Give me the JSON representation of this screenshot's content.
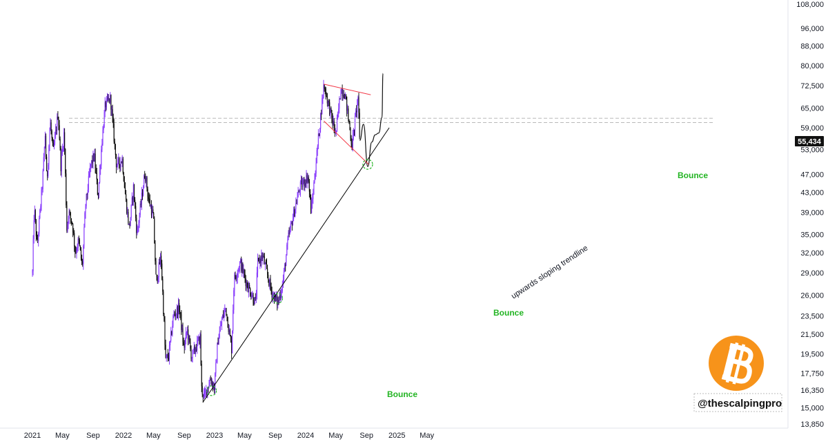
{
  "chart_data": {
    "type": "candlestick",
    "y_scale": "log",
    "ylim": [
      13850,
      108000
    ],
    "y_ticks": [
      "108,000",
      "96,000",
      "88,000",
      "80,000",
      "72,500",
      "65,000",
      "59,000",
      "53,000",
      "47,000",
      "43,000",
      "39,000",
      "35,000",
      "32,000",
      "29,000",
      "26,000",
      "23,500",
      "21,500",
      "19,500",
      "17,750",
      "16,350",
      "15,000",
      "13,850"
    ],
    "x_ticks": [
      "2021",
      "May",
      "Sep",
      "2022",
      "May",
      "Sep",
      "2023",
      "May",
      "Sep",
      "2024",
      "May",
      "Sep",
      "2025",
      "May"
    ],
    "last_price": "55,434",
    "colors": {
      "up": "#8a3ffc",
      "down": "#111111",
      "trendline": "#000000",
      "wedge": "#f23645",
      "resistance": "#b8b8b8",
      "bounce": "#22b422",
      "last_bg": "#111111",
      "logo": "#f7931a"
    },
    "price_path": [
      {
        "date": "2021-01-01",
        "close": 29000
      },
      {
        "date": "2021-01-08",
        "close": 40000
      },
      {
        "date": "2021-01-20",
        "close": 33000
      },
      {
        "date": "2021-02-10",
        "close": 45000
      },
      {
        "date": "2021-02-21",
        "close": 57000
      },
      {
        "date": "2021-02-28",
        "close": 45000
      },
      {
        "date": "2021-03-13",
        "close": 61000
      },
      {
        "date": "2021-03-25",
        "close": 52000
      },
      {
        "date": "2021-04-14",
        "close": 63500
      },
      {
        "date": "2021-04-25",
        "close": 49000
      },
      {
        "date": "2021-05-08",
        "close": 58000
      },
      {
        "date": "2021-05-19",
        "close": 36000
      },
      {
        "date": "2021-05-26",
        "close": 39000
      },
      {
        "date": "2021-06-10",
        "close": 37000
      },
      {
        "date": "2021-06-22",
        "close": 32000
      },
      {
        "date": "2021-07-05",
        "close": 34000
      },
      {
        "date": "2021-07-20",
        "close": 29800
      },
      {
        "date": "2021-08-01",
        "close": 40000
      },
      {
        "date": "2021-08-22",
        "close": 49000
      },
      {
        "date": "2021-09-06",
        "close": 51500
      },
      {
        "date": "2021-09-21",
        "close": 42000
      },
      {
        "date": "2021-10-06",
        "close": 55000
      },
      {
        "date": "2021-10-20",
        "close": 66000
      },
      {
        "date": "2021-11-10",
        "close": 68000
      },
      {
        "date": "2021-11-27",
        "close": 54000
      },
      {
        "date": "2021-12-04",
        "close": 49000
      },
      {
        "date": "2021-12-27",
        "close": 50500
      },
      {
        "date": "2022-01-10",
        "close": 41500
      },
      {
        "date": "2022-01-24",
        "close": 36000
      },
      {
        "date": "2022-02-10",
        "close": 44000
      },
      {
        "date": "2022-02-24",
        "close": 35000
      },
      {
        "date": "2022-03-28",
        "close": 47500
      },
      {
        "date": "2022-04-10",
        "close": 42000
      },
      {
        "date": "2022-05-01",
        "close": 38000
      },
      {
        "date": "2022-05-12",
        "close": 27500
      },
      {
        "date": "2022-05-31",
        "close": 31500
      },
      {
        "date": "2022-06-13",
        "close": 22500
      },
      {
        "date": "2022-06-18",
        "close": 19000
      },
      {
        "date": "2022-07-01",
        "close": 19300
      },
      {
        "date": "2022-07-20",
        "close": 23500
      },
      {
        "date": "2022-08-13",
        "close": 24500
      },
      {
        "date": "2022-08-31",
        "close": 20000
      },
      {
        "date": "2022-09-13",
        "close": 22000
      },
      {
        "date": "2022-10-01",
        "close": 19200
      },
      {
        "date": "2022-11-05",
        "close": 21200
      },
      {
        "date": "2022-11-09",
        "close": 16500
      },
      {
        "date": "2022-11-21",
        "close": 15800
      },
      {
        "date": "2022-12-15",
        "close": 17300
      },
      {
        "date": "2022-12-31",
        "close": 16550
      },
      {
        "date": "2023-01-14",
        "close": 20800
      },
      {
        "date": "2023-01-31",
        "close": 23100
      },
      {
        "date": "2023-02-15",
        "close": 24500
      },
      {
        "date": "2023-03-10",
        "close": 20000
      },
      {
        "date": "2023-03-20",
        "close": 28000
      },
      {
        "date": "2023-04-14",
        "close": 30500
      },
      {
        "date": "2023-05-10",
        "close": 27500
      },
      {
        "date": "2023-06-15",
        "close": 25000
      },
      {
        "date": "2023-06-23",
        "close": 30500
      },
      {
        "date": "2023-07-13",
        "close": 31500
      },
      {
        "date": "2023-08-17",
        "close": 26500
      },
      {
        "date": "2023-09-11",
        "close": 25000
      },
      {
        "date": "2023-10-01",
        "close": 27500
      },
      {
        "date": "2023-10-24",
        "close": 34500
      },
      {
        "date": "2023-12-08",
        "close": 44000
      },
      {
        "date": "2024-01-11",
        "close": 46500
      },
      {
        "date": "2024-01-23",
        "close": 39000
      },
      {
        "date": "2024-02-15",
        "close": 52000
      },
      {
        "date": "2024-03-14",
        "close": 73000
      },
      {
        "date": "2024-04-17",
        "close": 61000
      },
      {
        "date": "2024-05-01",
        "close": 57000
      },
      {
        "date": "2024-05-21",
        "close": 71500
      },
      {
        "date": "2024-06-07",
        "close": 69500
      },
      {
        "date": "2024-07-05",
        "close": 54000
      },
      {
        "date": "2024-07-29",
        "close": 69000
      },
      {
        "date": "2024-08-05",
        "close": 53500
      }
    ],
    "annotations": {
      "trendline_label": "upwards sloping trendline",
      "bounce_label": "Bounce",
      "bounce_dates": [
        "2022-12-20",
        "2023-09-11",
        "2024-09-06"
      ],
      "watermark": "@thescalpingpro"
    },
    "projection": [
      {
        "date": "2024-08-05",
        "close": 55400
      },
      {
        "date": "2024-08-20",
        "close": 60000
      },
      {
        "date": "2024-09-06",
        "close": 48800
      },
      {
        "date": "2024-09-22",
        "close": 55000
      },
      {
        "date": "2024-10-06",
        "close": 57000
      },
      {
        "date": "2024-10-20",
        "close": 57500
      },
      {
        "date": "2024-11-02",
        "close": 62000
      },
      {
        "date": "2024-11-06",
        "close": 77000
      }
    ],
    "overlays": [
      {
        "name": "uptrend",
        "points": [
          {
            "date": "2022-11-15",
            "value": 15400
          },
          {
            "date": "2024-12-01",
            "value": 59000
          }
        ]
      },
      {
        "name": "wedge-top",
        "points": [
          {
            "date": "2024-03-14",
            "value": 73000
          },
          {
            "date": "2024-09-18",
            "value": 69300
          }
        ]
      },
      {
        "name": "wedge-bottom",
        "points": [
          {
            "date": "2024-03-14",
            "value": 61000
          },
          {
            "date": "2024-09-10",
            "value": 49300
          }
        ]
      },
      {
        "name": "resistance-1",
        "value": 61800
      },
      {
        "name": "resistance-2",
        "value": 60500
      }
    ]
  }
}
